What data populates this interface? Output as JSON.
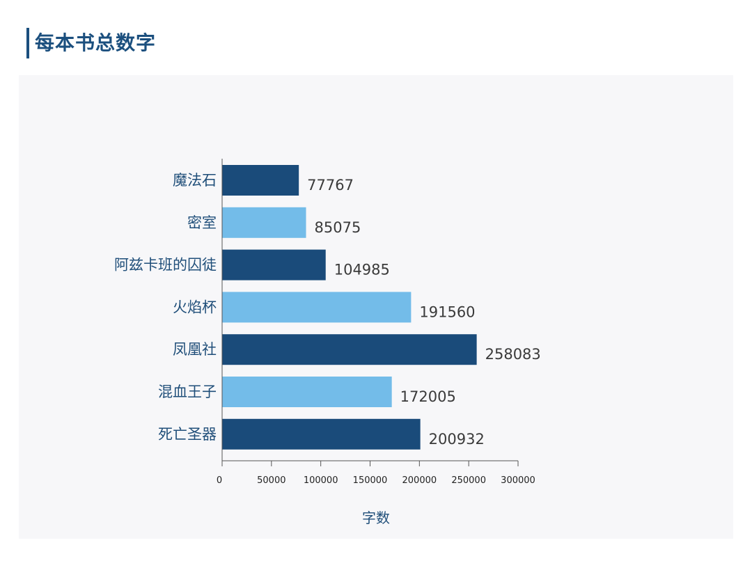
{
  "header": {
    "title": "每本书总数字"
  },
  "colors": {
    "accent": "#1b4f7e",
    "bar_dark": "#1a4b7a",
    "bar_light": "#73bce9",
    "panel_bg": "#f7f7f9"
  },
  "chart_data": {
    "type": "bar",
    "orientation": "horizontal",
    "title": "每本书总数字",
    "xlabel": "字数",
    "ylabel": "",
    "xlim": [
      0,
      300000
    ],
    "xticks": [
      0,
      50000,
      100000,
      150000,
      200000,
      250000,
      300000
    ],
    "xtick_labels": [
      "0",
      "50000",
      "100000",
      "150000",
      "200000",
      "250000",
      "300000"
    ],
    "categories": [
      "魔法石",
      "密室",
      "阿兹卡班的囚徒",
      "火焰杯",
      "凤凰社",
      "混血王子",
      "死亡圣器"
    ],
    "values": [
      77767,
      85075,
      104985,
      191560,
      258083,
      172005,
      200932
    ],
    "value_labels": [
      "77767",
      "85075",
      "104985",
      "191560",
      "258083",
      "172005",
      "200932"
    ],
    "bar_colors": [
      "#1a4b7a",
      "#73bce9",
      "#1a4b7a",
      "#73bce9",
      "#1a4b7a",
      "#73bce9",
      "#1a4b7a"
    ],
    "grid": false,
    "legend": "none"
  }
}
